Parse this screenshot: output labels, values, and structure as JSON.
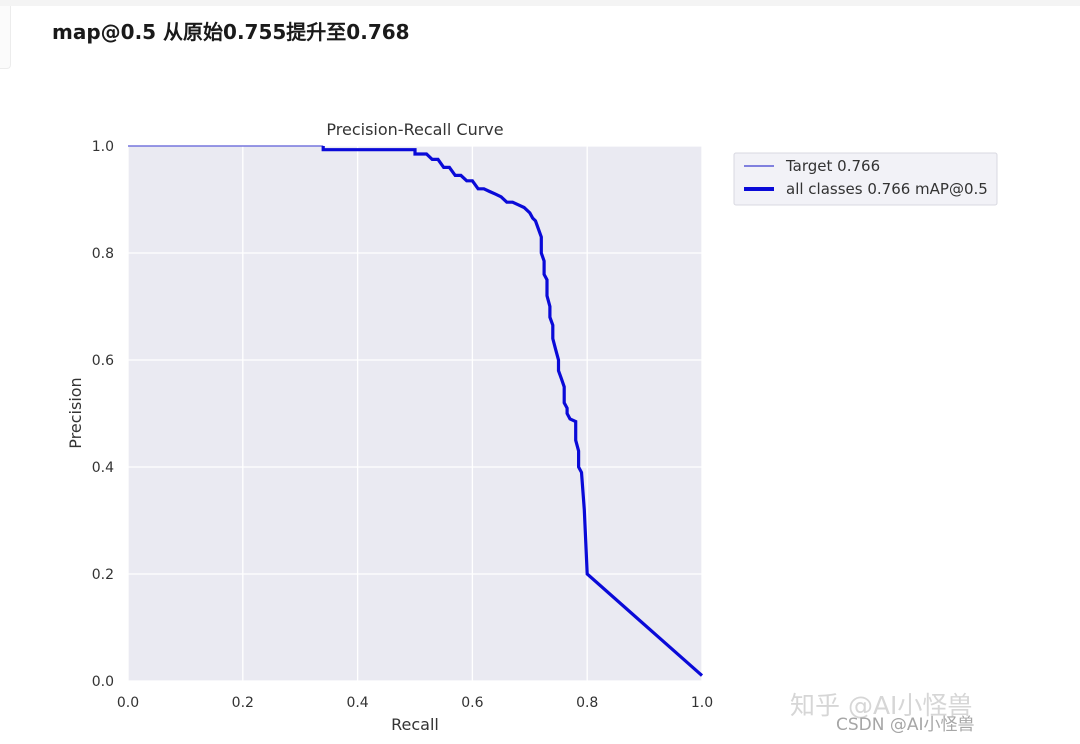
{
  "page": {
    "heading": "map@0.5 从原始0.755提升至0.768"
  },
  "chart_data": {
    "type": "line",
    "title": "Precision-Recall Curve",
    "xlabel": "Recall",
    "ylabel": "Precision",
    "xlim": [
      0,
      1
    ],
    "ylim": [
      0,
      1
    ],
    "xticks": [
      "0.0",
      "0.2",
      "0.4",
      "0.6",
      "0.8",
      "1.0"
    ],
    "yticks": [
      "0.0",
      "0.2",
      "0.4",
      "0.6",
      "0.8",
      "1.0"
    ],
    "grid": true,
    "legend_position": "top-right",
    "legend": [
      "Target 0.766",
      "all classes 0.766 mAP@0.5"
    ],
    "series": [
      {
        "name": "Target 0.766",
        "color": "#5b5bd6",
        "line": "thin",
        "x": [
          0.0,
          0.34
        ],
        "y": [
          1.0,
          1.0
        ]
      },
      {
        "name": "all classes 0.766 mAP@0.5",
        "color": "#0a0ad8",
        "line": "thick",
        "x": [
          0.34,
          0.34,
          0.5,
          0.5,
          0.52,
          0.53,
          0.54,
          0.55,
          0.56,
          0.57,
          0.58,
          0.59,
          0.6,
          0.61,
          0.62,
          0.63,
          0.64,
          0.65,
          0.66,
          0.67,
          0.68,
          0.69,
          0.7,
          0.705,
          0.71,
          0.715,
          0.72,
          0.72,
          0.725,
          0.725,
          0.73,
          0.73,
          0.735,
          0.735,
          0.74,
          0.74,
          0.745,
          0.75,
          0.75,
          0.755,
          0.76,
          0.76,
          0.765,
          0.765,
          0.77,
          0.78,
          0.78,
          0.785,
          0.785,
          0.79,
          0.795,
          0.8,
          1.0
        ],
        "y": [
          1.0,
          0.993,
          0.993,
          0.985,
          0.985,
          0.975,
          0.975,
          0.96,
          0.96,
          0.945,
          0.945,
          0.935,
          0.935,
          0.92,
          0.92,
          0.915,
          0.91,
          0.905,
          0.895,
          0.895,
          0.89,
          0.885,
          0.875,
          0.865,
          0.86,
          0.845,
          0.83,
          0.8,
          0.785,
          0.76,
          0.75,
          0.72,
          0.7,
          0.68,
          0.665,
          0.64,
          0.62,
          0.6,
          0.58,
          0.565,
          0.55,
          0.52,
          0.51,
          0.5,
          0.49,
          0.485,
          0.45,
          0.43,
          0.4,
          0.39,
          0.32,
          0.2,
          0.01
        ]
      }
    ]
  },
  "watermarks": {
    "zhihu": "知乎 @AI小怪兽",
    "csdn": "CSDN @AI小怪兽"
  }
}
